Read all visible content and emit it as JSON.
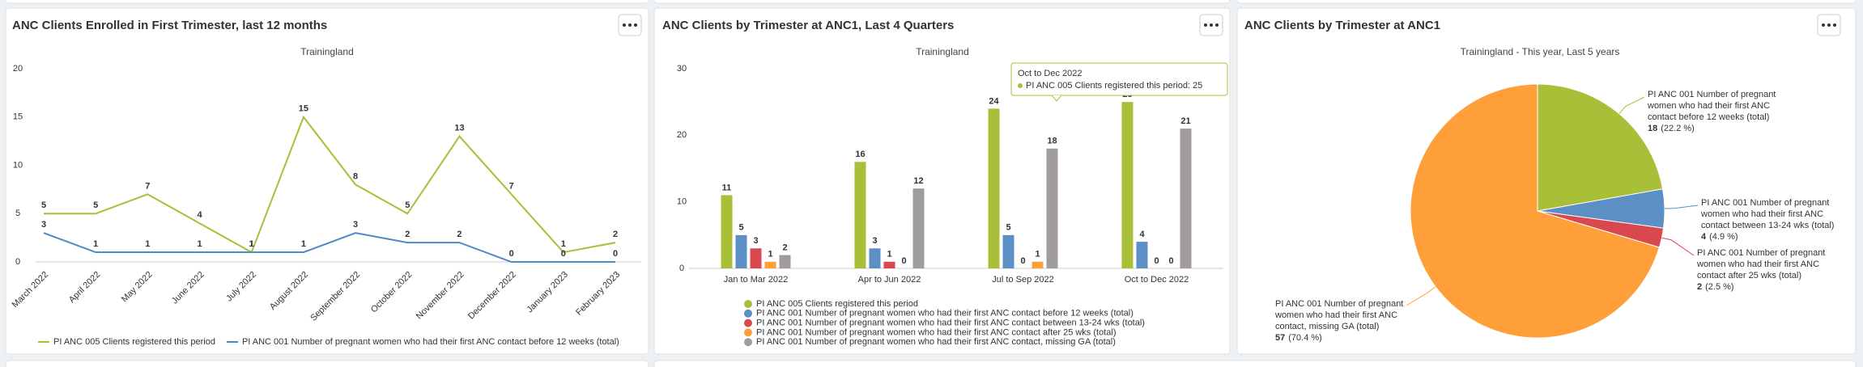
{
  "chart_data": [
    {
      "type": "line",
      "title": "ANC Clients Enrolled in First Trimester, last 12 months",
      "subtitle": "Trainingland",
      "categories": [
        "March 2022",
        "April 2022",
        "May 2022",
        "June 2022",
        "July 2022",
        "August 2022",
        "September 2022",
        "October 2022",
        "November 2022",
        "December 2022",
        "January 2023",
        "February 2023"
      ],
      "series": [
        {
          "name": "PI ANC 005 Clients registered this period",
          "color": "#a9bf38",
          "values": [
            5,
            5,
            7,
            4,
            1,
            15,
            8,
            5,
            13,
            7,
            1,
            2
          ]
        },
        {
          "name": "PI ANC 001 Number of pregnant women who had their first ANC contact before 12 weeks (total)",
          "color": "#4f88c6",
          "values": [
            3,
            1,
            1,
            1,
            1,
            1,
            3,
            2,
            2,
            0,
            0,
            0
          ]
        }
      ],
      "ylim": [
        0,
        20
      ],
      "yticks": [
        0,
        5,
        10,
        15,
        20
      ],
      "grid": false,
      "legend": "bottom"
    },
    {
      "type": "bar",
      "title": "ANC Clients by Trimester at ANC1, Last 4 Quarters",
      "subtitle": "Trainingland",
      "categories": [
        "Jan to Mar 2022",
        "Apr to Jun 2022",
        "Jul to Sep 2022",
        "Oct to Dec 2022"
      ],
      "series": [
        {
          "name": "PI ANC 005 Clients registered this period",
          "color": "#a9bf38",
          "values": [
            11,
            16,
            24,
            25
          ]
        },
        {
          "name": "PI ANC 001 Number of pregnant women who had their first ANC contact before 12 weeks (total)",
          "color": "#5b8fc6",
          "values": [
            5,
            3,
            5,
            4
          ]
        },
        {
          "name": "PI ANC 001 Number of pregnant women who had their first ANC contact between 13-24 wks (total)",
          "color": "#d9484f",
          "values": [
            3,
            1,
            0,
            0
          ]
        },
        {
          "name": "PI ANC 001 Number of pregnant women who had their first ANC contact after 25 wks (total)",
          "color": "#ff9f3a",
          "values": [
            1,
            0,
            1,
            0
          ]
        },
        {
          "name": "PI ANC 001 Number of pregnant women who had their first ANC contact, missing GA (total)",
          "color": "#a19c9c",
          "values": [
            2,
            12,
            18,
            21
          ]
        }
      ],
      "ylim": [
        0,
        30
      ],
      "yticks": [
        0,
        10,
        20,
        30
      ],
      "grid": false,
      "legend": "bottom",
      "tooltip": {
        "title": "Oct to Dec 2022",
        "label": "PI ANC 005 Clients registered this period: 25"
      }
    },
    {
      "type": "pie",
      "title": "ANC Clients by Trimester at ANC1",
      "subtitle": "Trainingland - This year, Last 5 years",
      "categories": [
        "PI ANC 001 Number of pregnant women who had their first ANC contact before 12 weeks (total)",
        "PI ANC 001 Number of pregnant women who had their first ANC contact between 13-24 wks (total)",
        "PI ANC 001 Number of pregnant women who had their first ANC contact after 25 wks (total)",
        "PI ANC 001 Number of pregnant women who had their first ANC contact, missing GA (total)"
      ],
      "values": [
        18,
        4,
        2,
        57
      ],
      "percent_labels": [
        "(22.2 %)",
        "(4.9 %)",
        "(2.5 %)",
        "(70.4 %)"
      ],
      "colors": [
        "#a9bf38",
        "#5b8fc6",
        "#d9484f",
        "#ff9f3a"
      ]
    }
  ]
}
